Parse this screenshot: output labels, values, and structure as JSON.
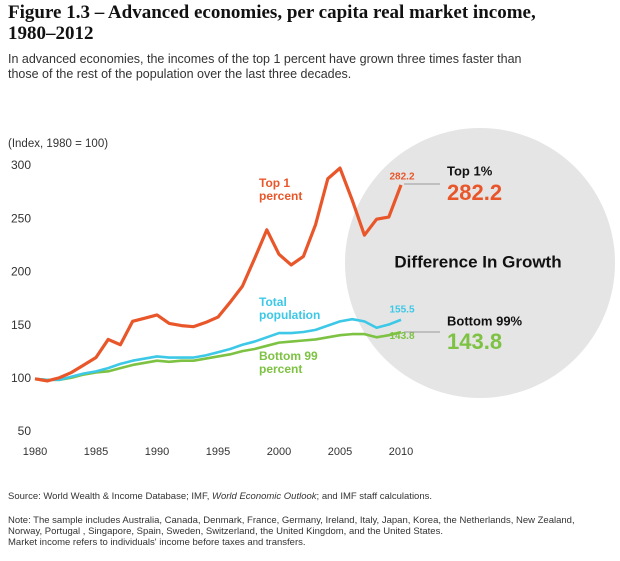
{
  "chart_data": {
    "type": "line",
    "title": "Figure 1.3 – Advanced economies, per capita real market income, 1980–2012",
    "subtitle": "In advanced economies, the incomes of the top 1 percent have grown three times faster than those of the rest of the population over the last three decades.",
    "y_axis_label": "(Index, 1980 = 100)",
    "x": [
      1980,
      1981,
      1982,
      1983,
      1984,
      1985,
      1986,
      1987,
      1988,
      1989,
      1990,
      1991,
      1992,
      1993,
      1994,
      1995,
      1996,
      1997,
      1998,
      1999,
      2000,
      2001,
      2002,
      2003,
      2004,
      2005,
      2006,
      2007,
      2008,
      2009,
      2010
    ],
    "xlim": [
      1980,
      2010
    ],
    "xticks": [
      1980,
      1985,
      1990,
      1995,
      2000,
      2005,
      2010
    ],
    "ylim": [
      50,
      300
    ],
    "yticks": [
      50,
      100,
      150,
      200,
      250,
      300
    ],
    "grid": false,
    "series": [
      {
        "name": "Top 1 percent",
        "color": "#e8562a",
        "values": [
          100,
          98,
          101,
          106,
          113,
          120,
          137,
          132,
          154,
          157,
          160,
          152,
          150,
          149,
          153,
          158,
          172,
          187,
          213,
          240,
          217,
          207,
          215,
          245,
          288,
          298,
          268,
          235,
          250,
          252,
          282.2
        ]
      },
      {
        "name": "Total population",
        "color": "#3cc8e6",
        "values": [
          100,
          99,
          99,
          102,
          105,
          107,
          110,
          114,
          117,
          119,
          121,
          120,
          120,
          120,
          122,
          125,
          128,
          132,
          135,
          139,
          143,
          143,
          144,
          146,
          150,
          154,
          156,
          154,
          148,
          151,
          155.5
        ]
      },
      {
        "name": "Bottom 99 percent",
        "color": "#7dc242",
        "values": [
          100,
          99,
          99,
          101,
          104,
          106,
          107,
          110,
          113,
          115,
          117,
          116,
          117,
          117,
          119,
          121,
          123,
          126,
          128,
          131,
          134,
          135,
          136,
          137,
          139,
          141,
          142,
          142,
          139,
          141,
          143.8
        ]
      }
    ],
    "circle_title": "Difference In Growth",
    "callouts": [
      "Top 1%",
      "Bottom 99%"
    ],
    "source": [
      "Source: World Wealth & Income Database; IMF, ",
      "World Economic Outlook",
      "; and IMF staff calculations."
    ],
    "note": [
      "Note: The sample includes Australia, Canada, Denmark, France, Germany, Ireland, Italy, Japan, Korea, the Netherlands, New Zealand, Norway, Portugal , Singapore, Spain, Sweden, Switzerland, the United Kingdom, and the United States.",
      "Market income refers to individuals' income before taxes and transfers."
    ]
  }
}
